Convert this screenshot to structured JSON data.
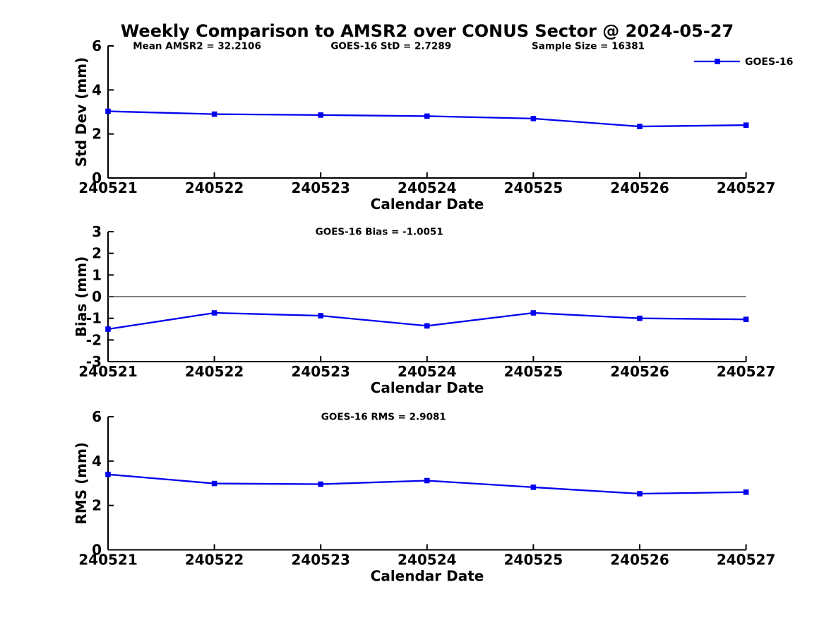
{
  "title": "Weekly Comparison to AMSR2 over CONUS Sector @ 2024-05-27",
  "colors": {
    "series": "#0000ee",
    "axis": "#000000",
    "zero_line": "#555555",
    "text": "#000000",
    "background": "#ffffff"
  },
  "chart_data": [
    {
      "type": "line",
      "name": "std-dev",
      "ylabel": "Std Dev (mm)",
      "xlabel": "Calendar Date",
      "ylim": [
        0,
        6
      ],
      "yticks": [
        0,
        2,
        4,
        6
      ],
      "grid": false,
      "marker": "square",
      "categories": [
        "240521",
        "240522",
        "240523",
        "240524",
        "240525",
        "240526",
        "240527"
      ],
      "series": [
        {
          "name": "GOES-16",
          "values": [
            3.03,
            2.9,
            2.86,
            2.81,
            2.7,
            2.34,
            2.4
          ]
        }
      ],
      "annotations": [
        "Mean AMSR2 = 32.2106",
        "GOES-16 StD = 2.7289",
        "Sample Size = 16381"
      ],
      "legend": {
        "label": "GOES-16",
        "position": "top-right"
      }
    },
    {
      "type": "line",
      "name": "bias",
      "ylabel": "Bias (mm)",
      "xlabel": "Calendar Date",
      "ylim": [
        -3,
        3
      ],
      "yticks": [
        -3,
        -2,
        -1,
        0,
        1,
        2,
        3
      ],
      "grid": false,
      "marker": "square",
      "zero_line": true,
      "categories": [
        "240521",
        "240522",
        "240523",
        "240524",
        "240525",
        "240526",
        "240527"
      ],
      "series": [
        {
          "name": "GOES-16",
          "values": [
            -1.5,
            -0.75,
            -0.88,
            -1.35,
            -0.75,
            -1.0,
            -1.05
          ]
        }
      ],
      "annotations": [
        "GOES-16 Bias  = -1.0051"
      ]
    },
    {
      "type": "line",
      "name": "rms",
      "ylabel": "RMS (mm)",
      "xlabel": "Calendar Date",
      "ylim": [
        0,
        6
      ],
      "yticks": [
        0,
        2,
        4,
        6
      ],
      "grid": false,
      "marker": "square",
      "categories": [
        "240521",
        "240522",
        "240523",
        "240524",
        "240525",
        "240526",
        "240527"
      ],
      "series": [
        {
          "name": "GOES-16",
          "values": [
            3.4,
            2.99,
            2.96,
            3.12,
            2.82,
            2.53,
            2.6
          ]
        }
      ],
      "annotations": [
        "GOES-16 RMS = 2.9081"
      ]
    }
  ]
}
